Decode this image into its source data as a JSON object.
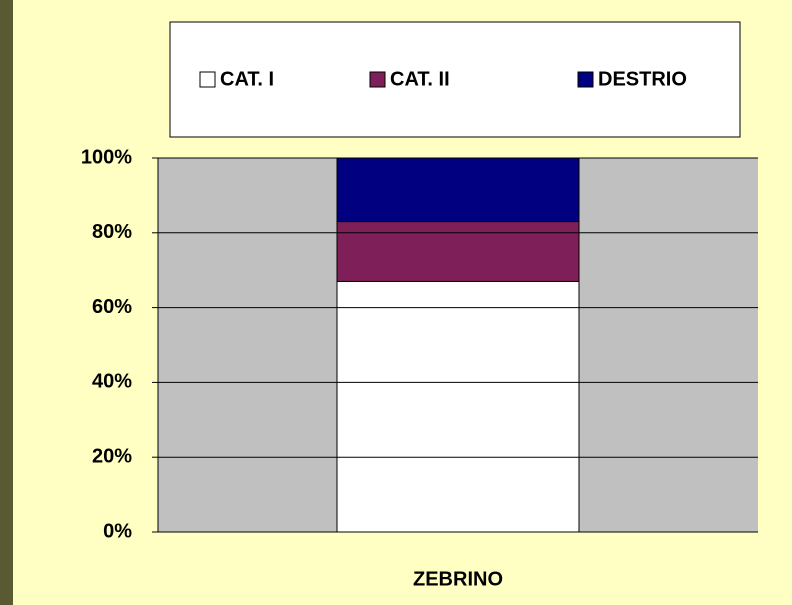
{
  "chart_data": {
    "type": "stacked_bar",
    "categories": [
      "ZEBRINO"
    ],
    "series": [
      {
        "name": "CAT. I",
        "color": "#ffffff",
        "values": [
          67
        ]
      },
      {
        "name": "CAT. II",
        "color": "#7f1f5a",
        "values": [
          16
        ]
      },
      {
        "name": "DESTRIO",
        "color": "#000080",
        "values": [
          17
        ]
      }
    ],
    "ylim": [
      0,
      100
    ],
    "yticks": [
      {
        "value": 0,
        "label": "0%"
      },
      {
        "value": 20,
        "label": "20%"
      },
      {
        "value": 40,
        "label": "40%"
      },
      {
        "value": 60,
        "label": "60%"
      },
      {
        "value": 80,
        "label": "80%"
      },
      {
        "value": 100,
        "label": "100%"
      }
    ],
    "grid": true,
    "legend": "top"
  }
}
